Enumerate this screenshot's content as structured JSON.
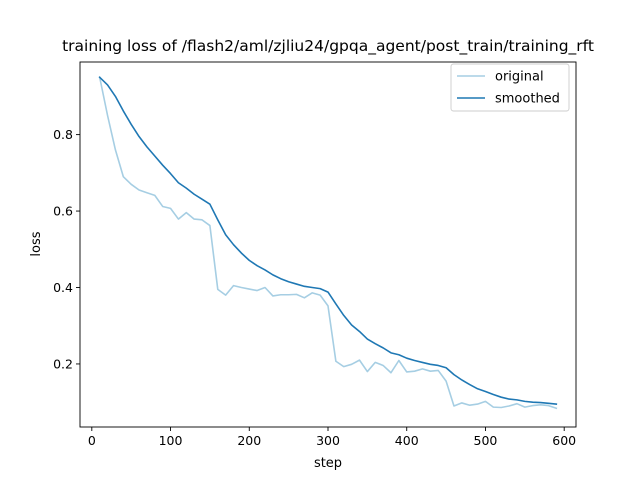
{
  "chart_data": {
    "type": "line",
    "title": "training loss of /flash2/aml/zjliu24/gpqa_agent/post_train/training_rft",
    "xlabel": "step",
    "ylabel": "loss",
    "xlim": [
      -15,
      615
    ],
    "ylim": [
      0.035,
      0.99
    ],
    "xticks": [
      0,
      100,
      200,
      300,
      400,
      500,
      600
    ],
    "xtick_labels": [
      "0",
      "100",
      "200",
      "300",
      "400",
      "500",
      "600"
    ],
    "yticks": [
      0.2,
      0.4,
      0.6,
      0.8
    ],
    "ytick_labels": [
      "0.2",
      "0.4",
      "0.6",
      "0.8"
    ],
    "grid": false,
    "legend_position": "top-right",
    "x": [
      10,
      20,
      30,
      40,
      50,
      60,
      70,
      80,
      90,
      100,
      110,
      120,
      130,
      140,
      150,
      160,
      170,
      180,
      190,
      200,
      210,
      220,
      230,
      240,
      250,
      260,
      270,
      280,
      290,
      300,
      310,
      320,
      330,
      340,
      350,
      360,
      370,
      380,
      390,
      400,
      410,
      420,
      430,
      440,
      450,
      460,
      470,
      480,
      490,
      500,
      510,
      520,
      530,
      540,
      550,
      560,
      570,
      580,
      590
    ],
    "series": [
      {
        "name": "original",
        "color": "#a6cee3",
        "values": [
          0.95,
          0.85,
          0.76,
          0.69,
          0.67,
          0.655,
          0.648,
          0.641,
          0.612,
          0.607,
          0.579,
          0.596,
          0.579,
          0.577,
          0.562,
          0.395,
          0.38,
          0.405,
          0.4,
          0.396,
          0.392,
          0.4,
          0.378,
          0.381,
          0.381,
          0.382,
          0.373,
          0.386,
          0.38,
          0.352,
          0.207,
          0.193,
          0.199,
          0.21,
          0.18,
          0.204,
          0.196,
          0.177,
          0.209,
          0.179,
          0.181,
          0.187,
          0.181,
          0.183,
          0.155,
          0.09,
          0.098,
          0.092,
          0.095,
          0.102,
          0.087,
          0.086,
          0.09,
          0.096,
          0.087,
          0.091,
          0.093,
          0.091,
          0.084
        ]
      },
      {
        "name": "smoothed",
        "color": "#1f78b4",
        "values": [
          0.95,
          0.93,
          0.9,
          0.862,
          0.827,
          0.795,
          0.768,
          0.744,
          0.72,
          0.698,
          0.674,
          0.66,
          0.644,
          0.631,
          0.618,
          0.577,
          0.538,
          0.512,
          0.49,
          0.471,
          0.457,
          0.446,
          0.433,
          0.423,
          0.415,
          0.409,
          0.403,
          0.4,
          0.397,
          0.388,
          0.357,
          0.327,
          0.302,
          0.285,
          0.265,
          0.253,
          0.242,
          0.229,
          0.224,
          0.215,
          0.209,
          0.204,
          0.199,
          0.196,
          0.19,
          0.172,
          0.158,
          0.146,
          0.135,
          0.128,
          0.12,
          0.113,
          0.108,
          0.106,
          0.102,
          0.1,
          0.099,
          0.097,
          0.095
        ]
      }
    ]
  }
}
